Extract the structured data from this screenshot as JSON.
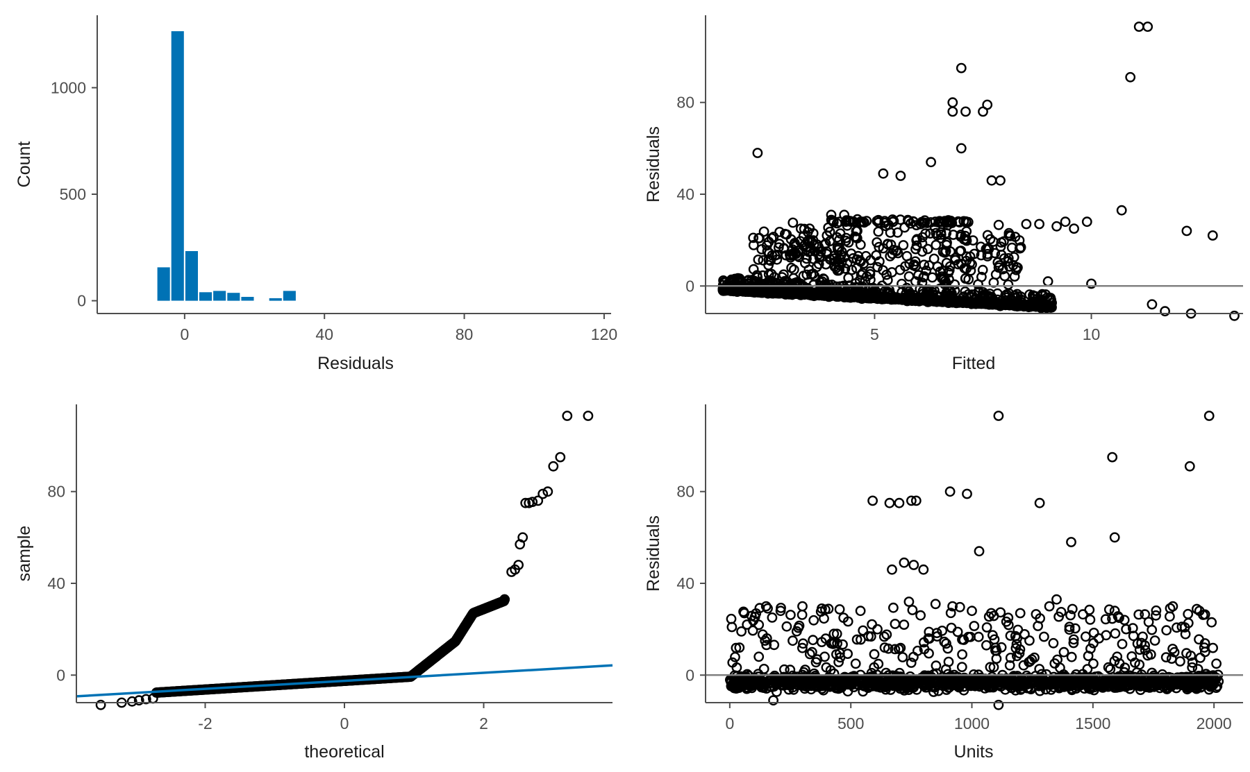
{
  "colors": {
    "accent": "#0072B5",
    "points": "#000000",
    "reference_line": "#808080",
    "axis": "#4d4d4d"
  },
  "chart_data": [
    {
      "id": "hist",
      "type": "bar",
      "xlabel": "Residuals",
      "ylabel": "Count",
      "xlim": [
        -25,
        122
      ],
      "ylim": [
        -60,
        1340
      ],
      "xticks": [
        0,
        40,
        80,
        120
      ],
      "yticks": [
        0,
        500,
        1000
      ],
      "bin_width": 4,
      "bins": [
        {
          "x": -8,
          "count": 157
        },
        {
          "x": -4,
          "count": 1265
        },
        {
          "x": 0,
          "count": 233
        },
        {
          "x": 4,
          "count": 40
        },
        {
          "x": 8,
          "count": 46
        },
        {
          "x": 12,
          "count": 37
        },
        {
          "x": 16,
          "count": 18
        },
        {
          "x": 20,
          "count": 0
        },
        {
          "x": 24,
          "count": 12
        },
        {
          "x": 28,
          "count": 46
        }
      ]
    },
    {
      "id": "fitted",
      "type": "scatter",
      "xlabel": "Fitted",
      "ylabel": "Residuals",
      "xlim": [
        1.1,
        13.5
      ],
      "ylim": [
        -12,
        118
      ],
      "xticks": [
        5,
        10
      ],
      "yticks": [
        0,
        40,
        80
      ],
      "hline": 0,
      "points": [
        [
          2.3,
          58
        ],
        [
          3.3,
          25
        ],
        [
          3.5,
          25
        ],
        [
          4.0,
          31
        ],
        [
          4.3,
          31
        ],
        [
          4.6,
          24
        ],
        [
          5.2,
          49
        ],
        [
          5.6,
          48
        ],
        [
          6.3,
          54
        ],
        [
          6.8,
          80
        ],
        [
          6.8,
          76
        ],
        [
          7.0,
          95
        ],
        [
          7.0,
          60
        ],
        [
          7.1,
          76
        ],
        [
          7.5,
          76
        ],
        [
          7.6,
          79
        ],
        [
          7.7,
          46
        ],
        [
          7.9,
          46
        ],
        [
          8.5,
          27
        ],
        [
          8.8,
          27
        ],
        [
          9.2,
          26
        ],
        [
          9.4,
          28
        ],
        [
          9.9,
          28
        ],
        [
          10.7,
          33
        ],
        [
          10.9,
          91
        ],
        [
          11.1,
          113
        ],
        [
          11.3,
          113
        ],
        [
          11.4,
          -8
        ],
        [
          11.7,
          -11
        ],
        [
          12.2,
          24
        ],
        [
          12.3,
          -12
        ],
        [
          12.8,
          22
        ],
        [
          13.3,
          -13
        ],
        [
          3.1,
          14
        ],
        [
          3.6,
          18
        ],
        [
          4.2,
          9
        ],
        [
          4.8,
          13
        ],
        [
          5.4,
          6
        ],
        [
          6.1,
          15
        ],
        [
          6.6,
          3
        ],
        [
          7.2,
          10
        ],
        [
          7.8,
          5
        ],
        [
          8.3,
          8
        ],
        [
          9.0,
          2
        ],
        [
          10.0,
          1
        ],
        [
          2.6,
          11
        ],
        [
          2.9,
          5
        ],
        [
          3.9,
          22
        ],
        [
          4.4,
          19
        ],
        [
          5.1,
          17
        ],
        [
          5.9,
          28
        ],
        [
          6.4,
          28
        ],
        [
          7.3,
          14
        ],
        [
          8.1,
          23
        ],
        [
          9.6,
          25
        ]
      ]
    },
    {
      "id": "qq",
      "type": "scatter",
      "xlabel": "theoretical",
      "ylabel": "sample",
      "xlim": [
        -3.85,
        3.85
      ],
      "ylim": [
        -12,
        118
      ],
      "xticks": [
        -2,
        0,
        2
      ],
      "yticks": [
        0,
        40,
        80
      ],
      "reference_line": {
        "intercept": -2.5,
        "slope": 1.75
      },
      "tail_points": [
        [
          -3.5,
          -13
        ],
        [
          -3.2,
          -12
        ],
        [
          -3.05,
          -11.5
        ],
        [
          -2.95,
          -11
        ],
        [
          -2.85,
          -10.5
        ],
        [
          -2.75,
          -10.2
        ],
        [
          2.3,
          33
        ],
        [
          2.4,
          45
        ],
        [
          2.45,
          46
        ],
        [
          2.5,
          48
        ],
        [
          2.52,
          57
        ],
        [
          2.56,
          60
        ],
        [
          2.6,
          75
        ],
        [
          2.65,
          75
        ],
        [
          2.7,
          75.5
        ],
        [
          2.78,
          76
        ],
        [
          2.85,
          79
        ],
        [
          2.92,
          80
        ],
        [
          3.0,
          91
        ],
        [
          3.1,
          95
        ],
        [
          3.2,
          113
        ],
        [
          3.5,
          113
        ]
      ]
    },
    {
      "id": "units",
      "type": "scatter",
      "xlabel": "Units",
      "ylabel": "Residuals",
      "xlim": [
        -100,
        2120
      ],
      "ylim": [
        -12,
        118
      ],
      "xticks": [
        0,
        500,
        1000,
        1500,
        2000
      ],
      "yticks": [
        0,
        40,
        80
      ],
      "hline": 0,
      "points": [
        [
          590,
          76
        ],
        [
          660,
          75
        ],
        [
          700,
          75
        ],
        [
          750,
          76
        ],
        [
          770,
          76
        ],
        [
          670,
          46
        ],
        [
          720,
          49
        ],
        [
          760,
          48
        ],
        [
          800,
          46
        ],
        [
          910,
          80
        ],
        [
          980,
          79
        ],
        [
          1030,
          54
        ],
        [
          1110,
          113
        ],
        [
          1280,
          75
        ],
        [
          1410,
          58
        ],
        [
          1580,
          95
        ],
        [
          1590,
          60
        ],
        [
          1900,
          91
        ],
        [
          1980,
          113
        ],
        [
          1110,
          -13
        ],
        [
          180,
          -11
        ],
        [
          60,
          27
        ],
        [
          150,
          30
        ],
        [
          210,
          28
        ],
        [
          300,
          30
        ],
        [
          380,
          29
        ],
        [
          470,
          25
        ],
        [
          540,
          28
        ],
        [
          610,
          20
        ],
        [
          740,
          32
        ],
        [
          850,
          31
        ],
        [
          920,
          30
        ],
        [
          1000,
          28
        ],
        [
          1080,
          27
        ],
        [
          1150,
          25
        ],
        [
          1200,
          27
        ],
        [
          1320,
          30
        ],
        [
          1350,
          33
        ],
        [
          1420,
          14
        ],
        [
          1590,
          28
        ],
        [
          1630,
          24
        ],
        [
          1760,
          26
        ],
        [
          1830,
          30
        ],
        [
          1940,
          28
        ],
        [
          1990,
          23
        ],
        [
          40,
          12
        ],
        [
          120,
          8
        ],
        [
          260,
          15
        ],
        [
          340,
          10
        ],
        [
          430,
          18
        ],
        [
          520,
          5
        ],
        [
          640,
          12
        ],
        [
          820,
          16
        ],
        [
          960,
          9
        ],
        [
          1060,
          13
        ],
        [
          1180,
          17
        ],
        [
          1240,
          6
        ],
        [
          1380,
          10
        ],
        [
          1600,
          8
        ],
        [
          1700,
          14
        ],
        [
          1860,
          6
        ],
        [
          1960,
          12
        ],
        [
          2010,
          5
        ]
      ]
    }
  ]
}
